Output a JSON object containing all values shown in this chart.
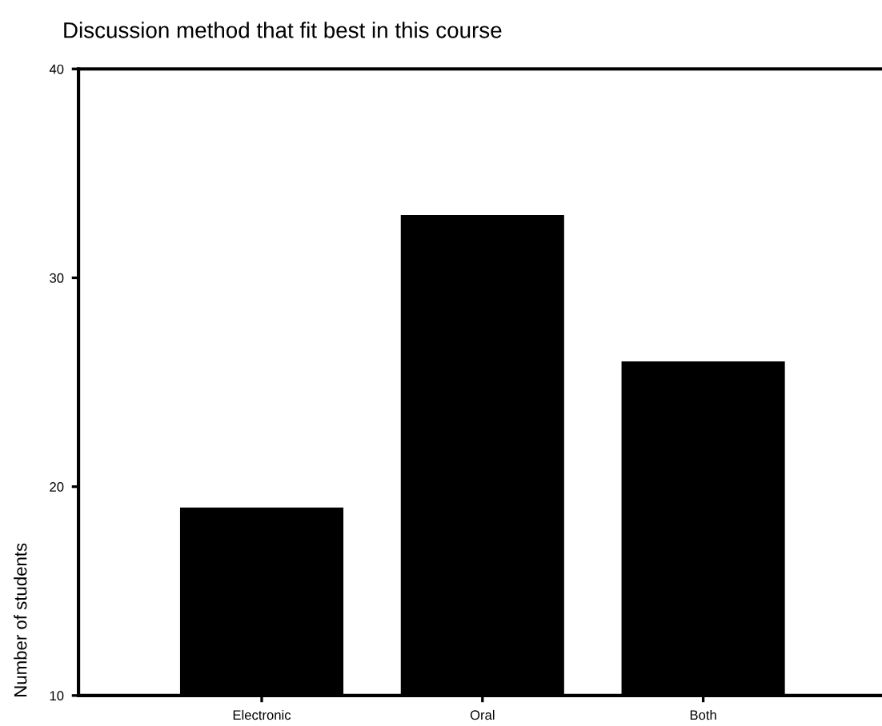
{
  "chart_data": {
    "type": "bar",
    "title": "Discussion method that fit best in this course",
    "ylabel": "Number of students",
    "categories": [
      "Electronic",
      "Oral",
      "Both"
    ],
    "values": [
      19,
      33,
      26
    ],
    "color": "#000000",
    "ylim": [
      10,
      40
    ],
    "yticks": [
      10,
      20,
      30,
      40
    ],
    "grid": false,
    "legend": false
  }
}
